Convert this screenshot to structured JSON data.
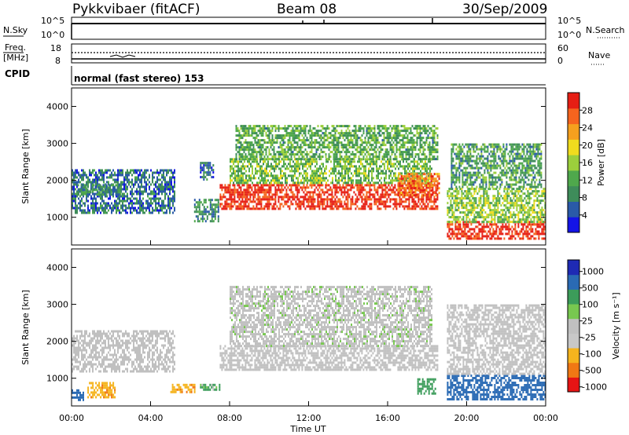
{
  "header": {
    "station": "Pykkvibaer (fitACF)",
    "beam": "Beam 08",
    "date": "30/Sep/2009"
  },
  "top_panels": {
    "nsky_label": "N.Sky",
    "nsky_ticks": [
      "10^5",
      "10^0"
    ],
    "nsearch_label": "N.Search",
    "nsearch_ticks": [
      "10^5",
      "10^0"
    ],
    "freq_label": "Freq.",
    "freq_unit": "[MHz]",
    "freq_ticks": [
      "18",
      "8"
    ],
    "nave_label": "Nave",
    "nave_ticks": [
      "60",
      "0"
    ],
    "cpid_label": "CPID",
    "cpid_text": "normal (fast stereo) 153"
  },
  "colors": {
    "power_scale": [
      "#1414e6",
      "#2a5aa8",
      "#3e8c5a",
      "#4fa84c",
      "#9ccf3c",
      "#f0dc1e",
      "#f5a01e",
      "#f5641e",
      "#e61e14"
    ],
    "velocity_scale": [
      "#e61414",
      "#f07814",
      "#f5b41e",
      "#c8c8c8",
      "#c0c0c0",
      "#78c850",
      "#3c9c5a",
      "#2a6ab4",
      "#1e2ab4"
    ],
    "gray": "#c0c0c0"
  },
  "chart_data": [
    {
      "type": "heatmap",
      "panel": "power",
      "ylabel": "Slant Range [km]",
      "yticks": [
        "1000",
        "2000",
        "3000",
        "4000"
      ],
      "ylim": [
        250,
        4500
      ],
      "xlim": [
        0,
        24
      ],
      "colorbar_label": "Power [dB]",
      "colorbar_ticks": [
        "4",
        "8",
        "12",
        "16",
        "20",
        "24",
        "28"
      ],
      "colorbar_range": [
        0,
        32
      ],
      "regions": [
        {
          "t0": 0.0,
          "t1": 5.2,
          "r0": 1100,
          "r1": 2300,
          "level": 7
        },
        {
          "t0": 0.3,
          "t1": 2.5,
          "r0": 1600,
          "r1": 1900,
          "level": 9
        },
        {
          "t0": 7.5,
          "t1": 18.5,
          "r0": 1200,
          "r1": 1900,
          "level": 30
        },
        {
          "t0": 8.0,
          "t1": 18.2,
          "r0": 1900,
          "r1": 2600,
          "level": 14
        },
        {
          "t0": 8.3,
          "t1": 18.5,
          "r0": 2600,
          "r1": 3500,
          "level": 12
        },
        {
          "t0": 16.5,
          "t1": 18.6,
          "r0": 1600,
          "r1": 2200,
          "level": 26
        },
        {
          "t0": 19.0,
          "t1": 24.0,
          "r0": 400,
          "r1": 900,
          "level": 30
        },
        {
          "t0": 19.0,
          "t1": 24.0,
          "r0": 900,
          "r1": 1800,
          "level": 15
        },
        {
          "t0": 19.2,
          "t1": 23.8,
          "r0": 1800,
          "r1": 3000,
          "level": 11
        },
        {
          "t0": 6.2,
          "t1": 7.4,
          "r0": 900,
          "r1": 1500,
          "level": 9
        },
        {
          "t0": 6.5,
          "t1": 7.2,
          "r0": 2000,
          "r1": 2500,
          "level": 6
        }
      ]
    },
    {
      "type": "heatmap",
      "panel": "velocity",
      "ylabel": "Slant Range [km]",
      "yticks": [
        "1000",
        "2000",
        "3000",
        "4000"
      ],
      "ylim": [
        250,
        4500
      ],
      "xlim": [
        0,
        24
      ],
      "colorbar_label": "Velocity [m s⁻¹]",
      "colorbar_ticks": [
        "1000",
        "500",
        "100",
        "25",
        "-25",
        "-100",
        "-500",
        "-1000"
      ],
      "colorbar_range": [
        -1200,
        1200
      ],
      "regions": [
        {
          "t0": 0.0,
          "t1": 5.2,
          "r0": 1200,
          "r1": 2300,
          "level": 0
        },
        {
          "t0": 7.5,
          "t1": 18.5,
          "r0": 1200,
          "r1": 1900,
          "level": 0
        },
        {
          "t0": 8.0,
          "t1": 18.2,
          "r0": 1900,
          "r1": 3500,
          "level": 10
        },
        {
          "t0": 19.0,
          "t1": 24.0,
          "r0": 400,
          "r1": 1100,
          "level": 700
        },
        {
          "t0": 19.0,
          "t1": 24.0,
          "r0": 1100,
          "r1": 3000,
          "level": 0
        },
        {
          "t0": 0.8,
          "t1": 2.2,
          "r0": 500,
          "r1": 900,
          "level": -400
        },
        {
          "t0": 5.0,
          "t1": 6.2,
          "r0": 600,
          "r1": 850,
          "level": -400
        },
        {
          "t0": 6.5,
          "t1": 7.5,
          "r0": 700,
          "r1": 850,
          "level": 150
        },
        {
          "t0": 0.0,
          "t1": 0.6,
          "r0": 400,
          "r1": 700,
          "level": 700
        },
        {
          "t0": 17.5,
          "t1": 18.4,
          "r0": 600,
          "r1": 1000,
          "level": 300
        }
      ]
    }
  ],
  "xaxis": {
    "label": "Time UT",
    "ticks": [
      "00:00",
      "04:00",
      "08:00",
      "12:00",
      "16:00",
      "20:00",
      "00:00"
    ]
  }
}
